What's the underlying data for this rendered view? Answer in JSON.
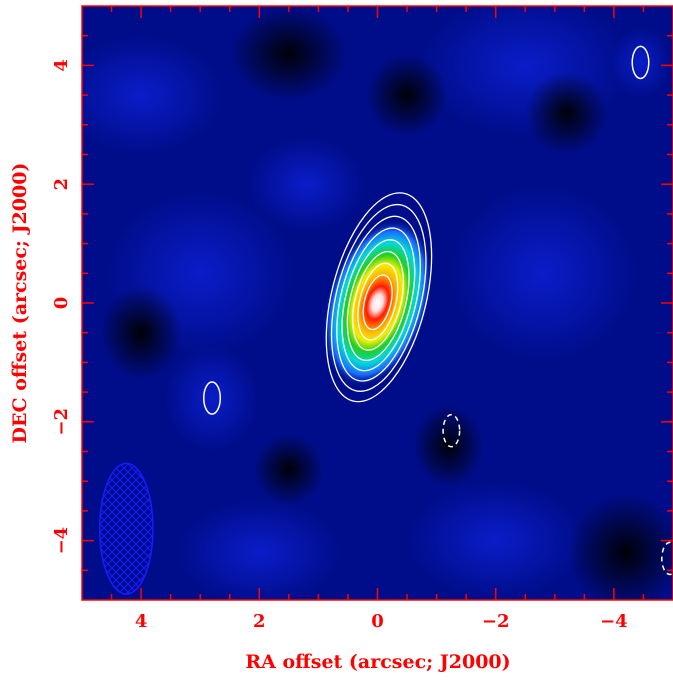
{
  "chart_data": {
    "type": "heatmap",
    "title": "",
    "xlabel": "RA offset (arcsec; J2000)",
    "ylabel": "DEC offset (arcsec; J2000)",
    "xlim": [
      5,
      -5
    ],
    "ylim": [
      -5,
      5
    ],
    "x_reversed": true,
    "x_ticks": [
      4,
      2,
      0,
      -2,
      -4
    ],
    "x_tick_labels": [
      "4",
      "2",
      "0",
      "−2",
      "−4"
    ],
    "y_ticks": [
      -4,
      -2,
      0,
      2,
      4
    ],
    "y_tick_labels": [
      "−4",
      "−2",
      "0",
      "2",
      "4"
    ],
    "colormap": "black-blue-cyan-green-yellow-red-white",
    "source": {
      "center": [
        0,
        0
      ],
      "peak_offset": [
        0,
        0
      ],
      "contour_count": 8,
      "outer_contour_extent_x": [
        0.85,
        -0.85
      ],
      "outer_contour_extent_y": [
        -2.0,
        1.7
      ]
    },
    "other_contours": [
      {
        "center": [
          2.8,
          -1.6
        ],
        "style": "solid"
      },
      {
        "center": [
          -4.45,
          4.05
        ],
        "style": "solid"
      },
      {
        "center": [
          -1.25,
          -2.15
        ],
        "style": "dashed"
      },
      {
        "center": [
          -4.95,
          -4.3
        ],
        "style": "dashed"
      }
    ],
    "beam": {
      "center": [
        4.25,
        -3.8
      ],
      "major_axis": 2.2,
      "minor_axis": 0.9,
      "hatch": "cross-hatched"
    },
    "colors": {
      "axes": "#ff0000",
      "labels": "#ff0000",
      "contours": "#ffffff",
      "beam": "#1a1aff"
    }
  }
}
